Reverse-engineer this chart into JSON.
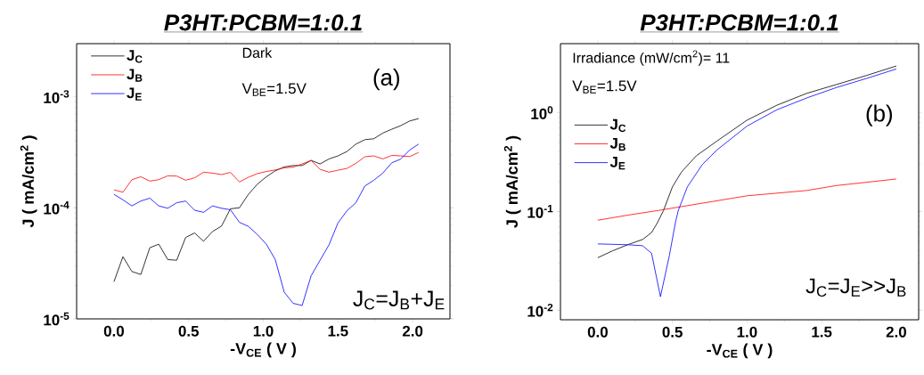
{
  "chart_data": [
    {
      "type": "line",
      "title": "P3HT:PCBM=1:0.1",
      "xlabel": "-V$_{CE}$ ( V )",
      "ylabel": "J ( mA/cm$^{2}$ )",
      "annotations": [
        "Dark",
        "V$_{BE}$=1.5V",
        "(a)",
        "J$_{C}$=J$_{B}$+J$_{E}$"
      ],
      "log": "y",
      "legend": "top left",
      "marker": "none",
      "xlim": [
        -0.25,
        2.25
      ],
      "ylim": [
        1e-05,
        0.003
      ],
      "xticks": [
        {
          "value": 0,
          "label": "0.0"
        },
        {
          "value": 0.5,
          "label": "0.5"
        },
        {
          "value": 1,
          "label": "1.0"
        },
        {
          "value": 1.5,
          "label": "1.5"
        },
        {
          "value": 2,
          "label": "2.0"
        }
      ],
      "yticks": [
        {
          "value": 1e-05,
          "label": "10$^{-5}$"
        },
        {
          "value": 0.0001,
          "label": "10$^{-4}$"
        },
        {
          "value": 0.001,
          "label": "10$^{-3}$"
        }
      ],
      "x": [
        0,
        0.06,
        0.12,
        0.18,
        0.24,
        0.3,
        0.36,
        0.42,
        0.48,
        0.54,
        0.6,
        0.66,
        0.72,
        0.78,
        0.84,
        0.9,
        0.96,
        1.02,
        1.08,
        1.14,
        1.2,
        1.26,
        1.32,
        1.38,
        1.44,
        1.5,
        1.56,
        1.62,
        1.68,
        1.74,
        1.8,
        1.86,
        1.92,
        1.98,
        2.04
      ],
      "series": [
        {
          "name": "J$_{C}$",
          "color": "#000000",
          "values": [
            2.16e-05,
            3.63e-05,
            2.67e-05,
            2.51e-05,
            4.37e-05,
            4.7e-05,
            3.42e-05,
            3.37e-05,
            5.41e-05,
            5.93e-05,
            5e-05,
            6.12e-05,
            6.84e-05,
            9.8e-05,
            0.0001,
            0.000132,
            0.000163,
            0.00019,
            0.000215,
            0.000233,
            0.00024,
            0.00024,
            0.000267,
            0.000248,
            0.000275,
            0.000293,
            0.000321,
            0.000374,
            0.00041,
            0.000418,
            0.00047,
            0.000509,
            0.000548,
            0.000604,
            0.000635
          ]
        },
        {
          "name": "J$_{B}$",
          "color": "#ff0000",
          "values": [
            0.000145,
            0.000138,
            0.000179,
            0.00019,
            0.000174,
            0.000179,
            0.000194,
            0.000193,
            0.000177,
            0.000186,
            0.000209,
            0.000205,
            0.000199,
            0.000208,
            0.000171,
            0.000188,
            0.000203,
            0.000212,
            0.000219,
            0.000229,
            0.000232,
            0.000248,
            0.000267,
            0.000222,
            0.000209,
            0.000218,
            0.000226,
            0.000251,
            0.000288,
            0.000293,
            0.000275,
            0.000296,
            0.000293,
            0.000289,
            0.000315
          ]
        },
        {
          "name": "J$_{E}$",
          "color": "#0000ff",
          "values": [
            0.000132,
            0.000118,
            0.000104,
            0.000115,
            0.000122,
            0.000104,
            9.9e-05,
            0.000111,
            0.000115,
            9.5e-05,
            9.1e-05,
            0.000104,
            9.9e-05,
            9.6e-05,
            7.4e-05,
            6.8e-05,
            5.75e-05,
            4.7e-05,
            3.42e-05,
            1.74e-05,
            1.38e-05,
            1.32e-05,
            2.44e-05,
            3.37e-05,
            4.64e-05,
            7.3e-05,
            9.4e-05,
            0.000111,
            0.000157,
            0.000177,
            0.000205,
            0.000254,
            0.000274,
            0.000331,
            0.000374
          ]
        }
      ]
    },
    {
      "type": "line",
      "title": "P3HT:PCBM=1:0.1",
      "xlabel": "-V$_{CE}$ ( V )",
      "ylabel": "J ( mA/cm$^{2}$ )",
      "annotations": [
        "Irradiance (mW/cm$^{2}$)= 11",
        "V$_{BE}$=1.5V",
        "(b)",
        "J$_{C}$=J$_{E}$>>J$_{B}$"
      ],
      "log": "y",
      "legend": "left",
      "marker": "none",
      "xlim": [
        -0.25,
        2.15
      ],
      "ylim": [
        0.008,
        5
      ],
      "xticks": [
        {
          "value": 0,
          "label": "0.0"
        },
        {
          "value": 0.5,
          "label": "0.5"
        },
        {
          "value": 1,
          "label": "1.0"
        },
        {
          "value": 1.5,
          "label": "1.5"
        },
        {
          "value": 2,
          "label": "2.0"
        }
      ],
      "yticks": [
        {
          "value": 0.01,
          "label": "10$^{-2}$"
        },
        {
          "value": 0.1,
          "label": "10$^{-1}$"
        },
        {
          "value": 1,
          "label": "10$^{0}$"
        }
      ],
      "series": [
        {
          "name": "J$_{C}$",
          "color": "#000000",
          "x": [
            0,
            0.1,
            0.2,
            0.3,
            0.36,
            0.4,
            0.44,
            0.5,
            0.56,
            0.66,
            0.8,
            1.0,
            1.2,
            1.4,
            1.6,
            1.8,
            2.0
          ],
          "values": [
            0.034,
            0.04,
            0.046,
            0.052,
            0.061,
            0.077,
            0.102,
            0.177,
            0.25,
            0.366,
            0.518,
            0.84,
            1.19,
            1.57,
            1.93,
            2.38,
            2.97
          ]
        },
        {
          "name": "J$_{B}$",
          "color": "#ff0000",
          "x": [
            0,
            0.2,
            0.4,
            1.0,
            1.4,
            1.6,
            2.0
          ],
          "values": [
            0.0815,
            0.0917,
            0.102,
            0.144,
            0.163,
            0.183,
            0.213
          ]
        },
        {
          "name": "J$_{E}$",
          "color": "#0000ff",
          "x": [
            0,
            0.2,
            0.3,
            0.36,
            0.42,
            0.48,
            0.52,
            0.54,
            0.6,
            0.7,
            0.8,
            1.0,
            1.2,
            1.4,
            1.6,
            1.8,
            2.0
          ],
          "values": [
            0.0469,
            0.046,
            0.045,
            0.0378,
            0.0137,
            0.036,
            0.077,
            0.103,
            0.177,
            0.298,
            0.421,
            0.732,
            1.07,
            1.41,
            1.8,
            2.22,
            2.77
          ]
        }
      ]
    }
  ]
}
